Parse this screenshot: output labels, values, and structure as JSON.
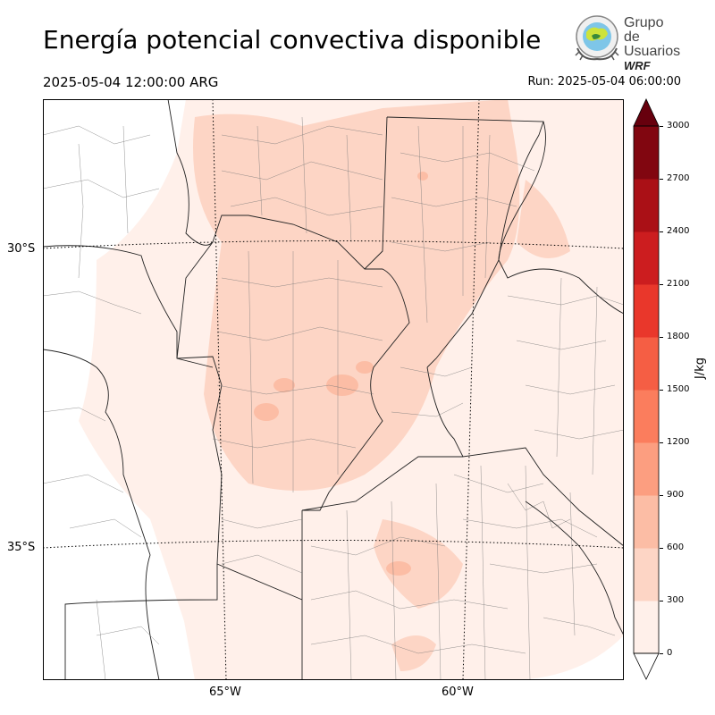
{
  "header": {
    "title": "Energía potencial convectiva disponible",
    "valid_time": "2025-05-04 12:00:00 ARG",
    "run_time": "Run: 2025-05-04 06:00:00"
  },
  "logo": {
    "line1": "Grupo de",
    "line2": "Usuarios",
    "line3": "WRF"
  },
  "map": {
    "variable": "CAPE",
    "lat_labels": [
      "30°S",
      "35°S"
    ],
    "lon_labels": [
      "65°W",
      "60°W"
    ],
    "gridlines": "dotted",
    "boundaries": [
      "provinces",
      "departments"
    ]
  },
  "colorbar": {
    "unit": "J/kg",
    "ticks": [
      "3000",
      "2700",
      "2400",
      "2100",
      "1800",
      "1500",
      "1200",
      "900",
      "600",
      "300",
      "0"
    ],
    "colors": [
      "#fff0ea",
      "#fdd5c5",
      "#fcbda5",
      "#fc9e80",
      "#fb7d5d",
      "#f55e44",
      "#e9372b",
      "#cc1d1f",
      "#aa1016",
      "#810610",
      "#67000d"
    ],
    "extend": "both"
  }
}
